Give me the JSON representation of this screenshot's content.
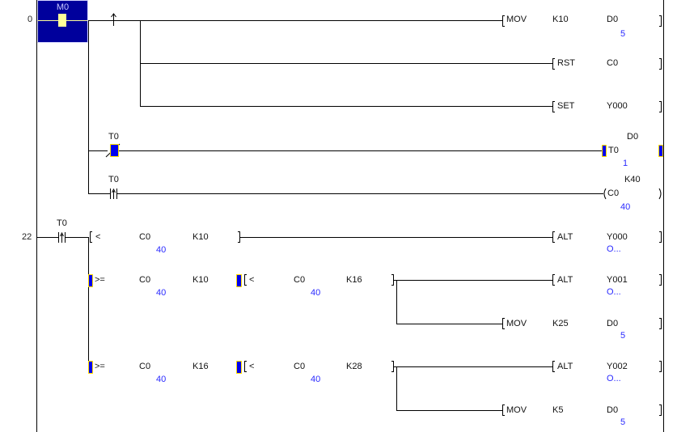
{
  "step_numbers": [
    "0",
    "22"
  ],
  "rung0": {
    "contact": {
      "device": "M0",
      "state": "on"
    },
    "edge_icon": "rising-edge-arrow",
    "mov1": {
      "instr": "MOV",
      "src": "K10",
      "dst": "D0",
      "dst_value": "5"
    },
    "rst": {
      "instr": "RST",
      "dev": "C0"
    },
    "set": {
      "instr": "SET",
      "dev": "Y000"
    },
    "t0_contact_nc": {
      "device": "T0",
      "state": "highlighted"
    },
    "t0_coil": {
      "device": "T0",
      "setting": "D0",
      "value": "1"
    },
    "t0_contact_pulse": {
      "device": "T0"
    },
    "c0_coil": {
      "device": "C0",
      "setting": "K40",
      "value": "40"
    }
  },
  "rung22": {
    "contact": {
      "device": "T0"
    },
    "cmp1": {
      "op": "<",
      "a": "C0",
      "a_value": "40",
      "b": "K10"
    },
    "alt1": {
      "instr": "ALT",
      "dev": "Y000",
      "value": "O..."
    },
    "cmp2a": {
      "op": ">=",
      "a": "C0",
      "a_value": "40",
      "b": "K10"
    },
    "cmp2b": {
      "op": "<",
      "a": "C0",
      "a_value": "40",
      "b": "K16"
    },
    "alt2": {
      "instr": "ALT",
      "dev": "Y001",
      "value": "O..."
    },
    "mov2": {
      "instr": "MOV",
      "src": "K25",
      "dst": "D0",
      "dst_value": "5"
    },
    "cmp3a": {
      "op": ">=",
      "a": "C0",
      "a_value": "40",
      "b": "K16"
    },
    "cmp3b": {
      "op": "<",
      "a": "C0",
      "a_value": "40",
      "b": "K28"
    },
    "alt3": {
      "instr": "ALT",
      "dev": "Y002",
      "value": "O..."
    },
    "mov3": {
      "instr": "MOV",
      "src": "K5",
      "dst": "D0",
      "dst_value": "5"
    }
  },
  "colors": {
    "highlight": "#00009c",
    "monitor_value": "#2a2aff",
    "energized": "#ffff99"
  }
}
